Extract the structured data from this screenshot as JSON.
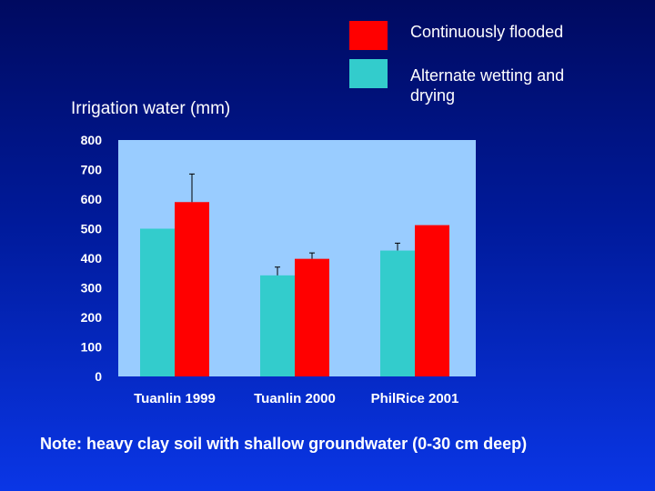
{
  "colors": {
    "continuous": "#ff0000",
    "awd": "#33cccc",
    "plot_bg": "#99ccff"
  },
  "chart_data": {
    "type": "bar",
    "title": "",
    "ylabel": "Irrigation water (mm)",
    "xlabel": "",
    "ylim": [
      0,
      800
    ],
    "yticks": [
      0,
      100,
      200,
      300,
      400,
      500,
      600,
      700,
      800
    ],
    "categories": [
      "Tuanlin 1999",
      "Tuanlin 2000",
      "PhilRice 2001"
    ],
    "series": [
      {
        "name": "Alternate wetting and drying",
        "values": [
          500,
          342,
          426
        ],
        "errors": [
          null,
          28,
          25
        ]
      },
      {
        "name": "Continuously flooded",
        "values": [
          590,
          398,
          512
        ],
        "errors": [
          95,
          20,
          null
        ]
      }
    ],
    "legend": {
      "position": "top-right",
      "continuous_label": "Continuously flooded",
      "awd_label": "Alternate wetting and drying"
    }
  },
  "note": "Note: heavy clay soil with shallow groundwater (0-30 cm deep)"
}
